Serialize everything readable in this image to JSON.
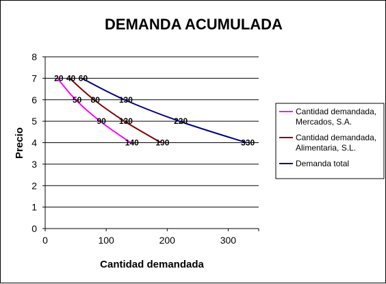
{
  "chart_data": {
    "type": "line",
    "title": "DEMANDA ACUMULADA",
    "xlabel": "Cantidad demandada",
    "ylabel": "Precio",
    "xlim": [
      0,
      350
    ],
    "ylim": [
      0,
      8
    ],
    "xticks": [
      "0",
      "100",
      "200",
      "300"
    ],
    "yticks": [
      "0",
      "1",
      "2",
      "3",
      "4",
      "5",
      "6",
      "7",
      "8"
    ],
    "grid": "horizontal",
    "legend_position": "right",
    "series": [
      {
        "name": "Cantidad demandada, Mercados, S.A.",
        "legend_lines": [
          "Cantidad demandada,",
          "Mercados, S.A."
        ],
        "color": "#FF00FF",
        "x": [
          20,
          50,
          90,
          140
        ],
        "y": [
          7,
          6,
          5,
          4
        ],
        "labels": [
          "20",
          "50",
          "90",
          "140"
        ]
      },
      {
        "name": "Cantidad demandada, Alimentaria, S.L.",
        "legend_lines": [
          "Cantidad demandada,",
          "Alimentaria, S.L."
        ],
        "color": "#800000",
        "x": [
          40,
          80,
          130,
          190
        ],
        "y": [
          7,
          6,
          5,
          4
        ],
        "labels": [
          "40",
          "80",
          "130",
          "190"
        ]
      },
      {
        "name": "Demanda total",
        "legend_lines": [
          "Demanda total"
        ],
        "color": "#000080",
        "x": [
          60,
          130,
          220,
          330
        ],
        "y": [
          7,
          6,
          5,
          4
        ],
        "labels": [
          "60",
          "130",
          "220",
          "330"
        ]
      }
    ]
  }
}
